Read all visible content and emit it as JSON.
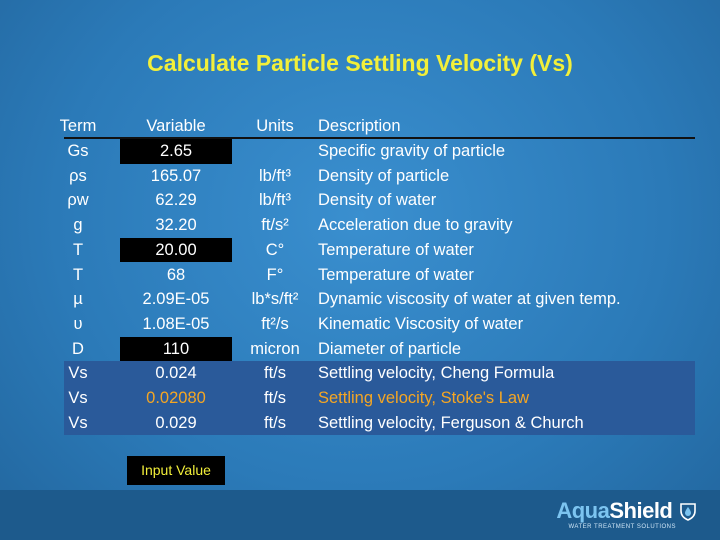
{
  "title": "Calculate Particle Settling Velocity (Vs)",
  "table": {
    "header": [
      "Term",
      "Variable",
      "Units",
      "Description"
    ],
    "rows": [
      [
        "Gs",
        "2.65",
        "",
        "Specific gravity of particle"
      ],
      [
        "ρs",
        "165.07",
        "lb/ft³",
        "Density of particle"
      ],
      [
        "ρw",
        "62.29",
        "lb/ft³",
        "Density of water"
      ],
      [
        "g",
        "32.20",
        "ft/s²",
        "Acceleration due to gravity"
      ],
      [
        "T",
        "20.00",
        "C°",
        "Temperature of water"
      ],
      [
        "T",
        "68",
        "F°",
        "Temperature of water"
      ],
      [
        "µ",
        "2.09E-05",
        "lb*s/ft²",
        "Dynamic viscosity of water at given temp."
      ],
      [
        "υ",
        "1.08E-05",
        "ft²/s",
        "Kinematic Viscosity of water"
      ],
      [
        "D",
        "110",
        "micron",
        "Diameter of particle"
      ],
      [
        "Vs",
        "0.024",
        "ft/s",
        "Settling velocity, Cheng Formula"
      ],
      [
        "Vs",
        "0.02080",
        "ft/s",
        "Settling velocity, Stoke's Law"
      ],
      [
        "Vs",
        "0.029",
        "ft/s",
        "Settling velocity, Ferguson & Church"
      ]
    ]
  },
  "legend": "Input Value",
  "logo": {
    "aqua": "Aqua",
    "shield": "Shield",
    "tagline": "WATER TREATMENT SOLUTIONS"
  }
}
